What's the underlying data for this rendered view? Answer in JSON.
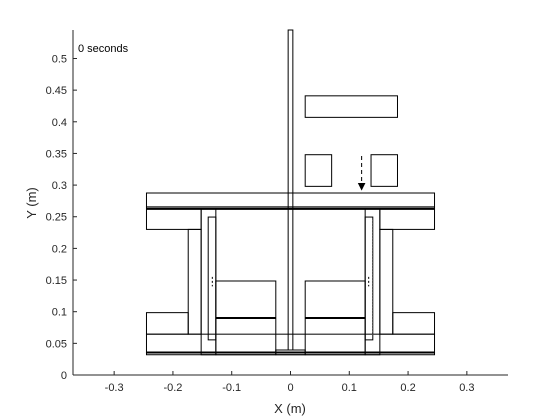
{
  "chart_data": {
    "type": "line",
    "title": "",
    "xlabel": "X (m)",
    "ylabel": "Y (m)",
    "xlim": [
      -0.37,
      0.37
    ],
    "ylim": [
      0,
      0.545
    ],
    "xticks": [
      -0.3,
      -0.2,
      -0.1,
      0,
      0.1,
      0.2,
      0.3
    ],
    "xtick_labels": [
      "-0.3",
      "-0.2",
      "-0.1",
      "0",
      "0.1",
      "0.2",
      "0.3"
    ],
    "yticks": [
      0,
      0.05,
      0.1,
      0.15,
      0.2,
      0.25,
      0.3,
      0.35,
      0.4,
      0.45,
      0.5
    ],
    "ytick_labels": [
      "0",
      "0.05",
      "0.1",
      "0.15",
      "0.2",
      "0.25",
      "0.3",
      "0.35",
      "0.4",
      "0.45",
      "0.5"
    ],
    "grid": false,
    "box": "left-bottom",
    "annotation": "0 seconds",
    "line_color": "#000000",
    "axis_color": "#262626",
    "rectangles": [
      {
        "name": "base-bottom-plate",
        "x0": -0.245,
        "y0": 0.032,
        "x1": 0.245,
        "y1": 0.0355
      },
      {
        "name": "base-lower-plate",
        "x0": -0.245,
        "y0": 0.0355,
        "x1": 0.245,
        "y1": 0.0645
      },
      {
        "name": "left-lower-flange",
        "x0": -0.245,
        "y0": 0.0645,
        "x1": -0.174,
        "y1": 0.0985
      },
      {
        "name": "right-lower-flange",
        "x0": 0.174,
        "y0": 0.0645,
        "x1": 0.245,
        "y1": 0.0985
      },
      {
        "name": "left-column",
        "x0": -0.174,
        "y0": 0.0645,
        "x1": -0.152,
        "y1": 0.23
      },
      {
        "name": "right-column",
        "x0": 0.152,
        "y0": 0.0645,
        "x1": 0.174,
        "y1": 0.23
      },
      {
        "name": "left-upper-flange",
        "x0": -0.245,
        "y0": 0.23,
        "x1": -0.152,
        "y1": 0.2625
      },
      {
        "name": "right-upper-flange",
        "x0": 0.152,
        "y0": 0.23,
        "x1": 0.245,
        "y1": 0.2625
      },
      {
        "name": "top-plate",
        "x0": -0.245,
        "y0": 0.2625,
        "x1": 0.245,
        "y1": 0.2655
      },
      {
        "name": "top-cap",
        "x0": -0.245,
        "y0": 0.2655,
        "x1": 0.245,
        "y1": 0.2875
      },
      {
        "name": "left-inner-wall",
        "x0": -0.152,
        "y0": 0.032,
        "x1": -0.127,
        "y1": 0.2625
      },
      {
        "name": "right-inner-wall",
        "x0": 0.127,
        "y0": 0.032,
        "x1": 0.152,
        "y1": 0.2625
      },
      {
        "name": "left-rail",
        "x0": -0.14,
        "y0": 0.0555,
        "x1": -0.127,
        "y1": 0.2495
      },
      {
        "name": "right-rail",
        "x0": 0.127,
        "y0": 0.0555,
        "x1": 0.14,
        "y1": 0.2495
      },
      {
        "name": "left-block",
        "x0": -0.127,
        "y0": 0.032,
        "x1": -0.025,
        "y1": 0.1485
      },
      {
        "name": "right-block",
        "x0": 0.025,
        "y0": 0.032,
        "x1": 0.127,
        "y1": 0.1485
      },
      {
        "name": "center-guide",
        "x0": -0.025,
        "y0": 0.032,
        "x1": 0.025,
        "y1": 0.0395
      },
      {
        "name": "center-rod",
        "x0": -0.004,
        "y0": 0.0395,
        "x1": 0.004,
        "y1": 0.545
      },
      {
        "name": "top-bar",
        "x0": 0.025,
        "y0": 0.407,
        "x1": 0.182,
        "y1": 0.441
      },
      {
        "name": "left-small-box",
        "x0": 0.025,
        "y0": 0.298,
        "x1": 0.07,
        "y1": 0.348
      },
      {
        "name": "right-small-box",
        "x0": 0.137,
        "y0": 0.298,
        "x1": 0.182,
        "y1": 0.348
      }
    ],
    "lines": [
      {
        "name": "base-thick-line",
        "x0": -0.245,
        "y0": 0.0355,
        "x1": 0.245,
        "y1": 0.0355,
        "width": 2
      },
      {
        "name": "top-thick-line",
        "x0": -0.245,
        "y0": 0.2625,
        "x1": 0.245,
        "y1": 0.2625,
        "width": 2
      },
      {
        "name": "left-block-thick-line",
        "x0": -0.127,
        "y0": 0.09,
        "x1": -0.025,
        "y1": 0.09,
        "width": 2
      },
      {
        "name": "right-block-thick-line",
        "x0": 0.025,
        "y0": 0.09,
        "x1": 0.127,
        "y1": 0.09,
        "width": 2
      }
    ],
    "arrow": {
      "name": "load-arrow",
      "x": 0.121,
      "y_top": 0.346,
      "y_bottom": 0.293
    }
  }
}
